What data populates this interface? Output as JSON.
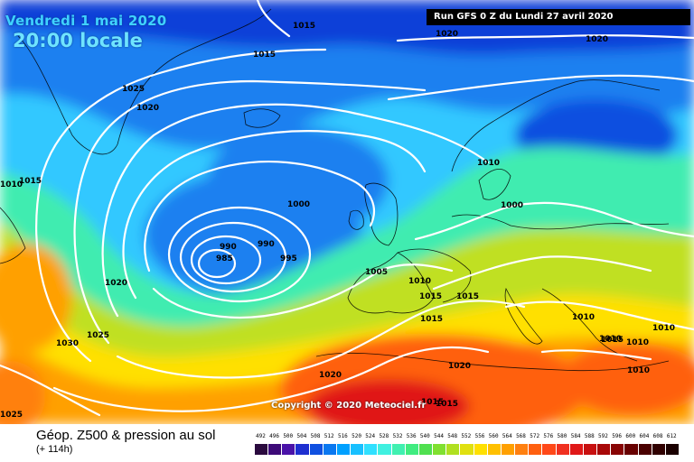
{
  "header": {
    "date_text": "Vendredi 1 mai 2020",
    "time_text": "20:00 locale",
    "run_text": "Run GFS 0 Z du Lundi 27 avril 2020"
  },
  "footer": {
    "title": "Géop. Z500 & pression au sol",
    "subtitle": "(+ 114h)",
    "copyright": "Copyright © 2020 Meteociel.fr"
  },
  "legend": {
    "labels": [
      "492",
      "496",
      "500",
      "504",
      "508",
      "512",
      "516",
      "520",
      "524",
      "528",
      "532",
      "536",
      "540",
      "544",
      "548",
      "552",
      "556",
      "560",
      "564",
      "568",
      "572",
      "576",
      "580",
      "584",
      "588",
      "592",
      "596",
      "600",
      "604",
      "608",
      "612"
    ],
    "colors": [
      "#2a0a3e",
      "#3d0a78",
      "#4a12a8",
      "#1e2fd0",
      "#1050e0",
      "#0a78f0",
      "#00a0ff",
      "#18c0ff",
      "#30e0ff",
      "#40f0e0",
      "#40f0b0",
      "#40ec80",
      "#50e050",
      "#80e030",
      "#b0e020",
      "#e0e010",
      "#ffe000",
      "#ffc000",
      "#ffa000",
      "#ff8010",
      "#ff6010",
      "#ff4818",
      "#f03020",
      "#e01818",
      "#c81010",
      "#a80808",
      "#880404",
      "#680000",
      "#4a0000",
      "#300000",
      "#1a0000"
    ]
  },
  "isobar_labels": [
    "1015",
    "1015",
    "1020",
    "1020",
    "1025",
    "1020",
    "1015",
    "1010",
    "1025",
    "1030",
    "1020",
    "1000",
    "990",
    "990",
    "985",
    "995",
    "1005",
    "1010",
    "1015",
    "1015",
    "1015",
    "1010",
    "1000",
    "1010",
    "1010",
    "1010",
    "1010",
    "1020",
    "1020",
    "1015",
    "1025",
    "1010",
    "1015",
    "1015"
  ],
  "map_colors": {
    "deep_blue": "#1040d8",
    "blue": "#1e80f0",
    "light_blue": "#30c8ff",
    "cyan": "#38e8f0",
    "aqua_green": "#40ecb0",
    "green": "#50e050",
    "yellow_green": "#c0e020",
    "yellow": "#ffe000",
    "orange": "#ffa000",
    "dark_orange": "#ff6010",
    "red": "#e01818",
    "dark_red": "#a80808"
  }
}
